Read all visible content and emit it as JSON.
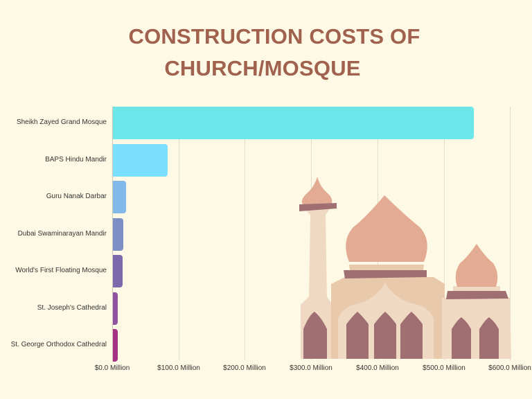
{
  "title": {
    "line1": "CONSTRUCTION COSTS OF",
    "line2": "CHURCH/MOSQUE"
  },
  "colors": {
    "background": "#fef9e4",
    "title": "#a0614f",
    "bars": [
      "#6ce6e8",
      "#7ae0fe",
      "#82b9e8",
      "#7b8fc4",
      "#7a6aab",
      "#8e54a1",
      "#a63283"
    ]
  },
  "chart_data": {
    "type": "bar",
    "orientation": "horizontal",
    "title": "CONSTRUCTION COSTS OF CHURCH/MOSQUE",
    "xlabel": "",
    "ylabel": "",
    "categories": [
      "Sheikh Zayed Grand Mosque",
      "BAPS Hindu Mandir",
      "Guru Nanak Darbar",
      "Dubai Swaminarayan Mandir",
      "World's First Floating Mosque",
      "St. Joseph's Cathedral",
      "St. George Orthodox Cathedral"
    ],
    "values": [
      545,
      83,
      20,
      16,
      15,
      7,
      7
    ],
    "unit": "Million USD",
    "xlim": [
      0,
      600
    ],
    "x_ticks": [
      "$0.0 Million",
      "$100.0 Million",
      "$200.0 Million",
      "$300.0 Million",
      "$400.0 Million",
      "$500.0 Million",
      "$600.0 Million"
    ],
    "grid": true,
    "legend": "none"
  },
  "illustration": {
    "icon": "mosque-illustration"
  }
}
